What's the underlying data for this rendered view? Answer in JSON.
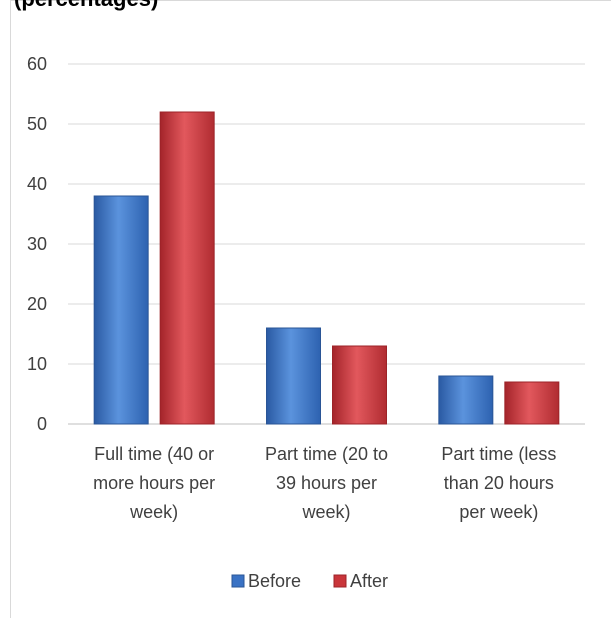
{
  "chart_data": {
    "type": "bar",
    "title_fragment": "(percentages)",
    "categories": [
      "Full time (40 or more hours per week)",
      "Part time (20 to 39 hours per week)",
      "Part time (less than 20 hours per week)"
    ],
    "category_lines": [
      [
        "Full time (40 or",
        "more hours per",
        "week)"
      ],
      [
        "Part time (20 to",
        "39 hours per",
        "week)"
      ],
      [
        "Part time (less",
        "than 20 hours",
        "per week)"
      ]
    ],
    "series": [
      {
        "name": "Before",
        "color": "#3a72c4",
        "values": [
          38,
          16,
          8
        ]
      },
      {
        "name": "After",
        "color": "#c9353a",
        "values": [
          52,
          13,
          7
        ]
      }
    ],
    "yticks": [
      0,
      10,
      20,
      30,
      40,
      50,
      60
    ],
    "ylim": [
      0,
      60
    ],
    "grid": true,
    "legend": "bottom"
  }
}
